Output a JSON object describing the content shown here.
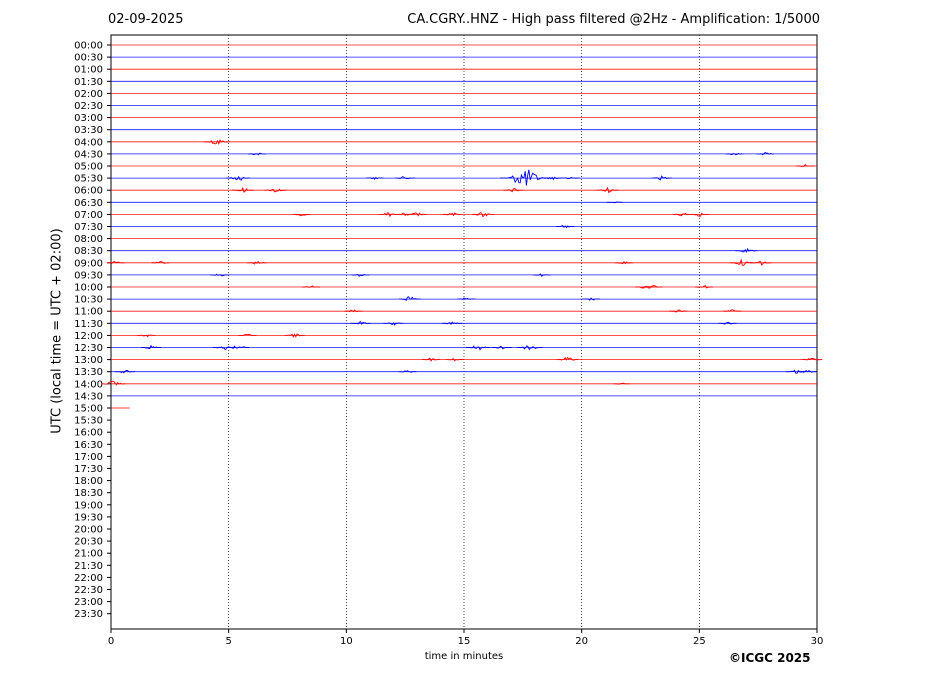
{
  "header": {
    "date": "02-09-2025",
    "title": "CA.CGRY..HNZ - High pass filtered @2Hz - Amplification: 1/5000"
  },
  "footer": {
    "copyright": "©ICGC 2025"
  },
  "colors": {
    "trace_a": "#ff0000",
    "trace_b": "#0000ff",
    "grid": "#000000"
  },
  "chart_data": {
    "type": "line",
    "title": "CA.CGRY..HNZ - High pass filtered @2Hz - Amplification: 1/5000",
    "xlabel": "time in minutes",
    "ylabel": "UTC (local time = UTC + 02:00)",
    "xlim": [
      0,
      30
    ],
    "x_ticks": [
      0,
      5,
      10,
      15,
      20,
      25,
      30
    ],
    "grid": "vertical dotted lines at 5, 10, 15, 20, 25 minutes",
    "y_ticks": [
      "00:00",
      "00:30",
      "01:00",
      "01:30",
      "02:00",
      "02:30",
      "03:00",
      "03:30",
      "04:00",
      "04:30",
      "05:00",
      "05:30",
      "06:00",
      "06:30",
      "07:00",
      "07:30",
      "08:00",
      "08:30",
      "09:00",
      "09:30",
      "10:00",
      "10:30",
      "11:00",
      "11:30",
      "12:00",
      "12:30",
      "13:00",
      "13:30",
      "14:00",
      "14:30",
      "15:00",
      "15:30",
      "16:00",
      "16:30",
      "17:00",
      "17:30",
      "18:00",
      "18:30",
      "19:00",
      "19:30",
      "20:00",
      "20:30",
      "21:00",
      "21:30",
      "22:00",
      "22:30",
      "23:00",
      "23:30"
    ],
    "recorded_until_minute_of_last_row": 0.8,
    "events": [
      {
        "row": "04:00",
        "minute": 4.5,
        "amp": 0.7
      },
      {
        "row": "04:30",
        "minute": 6.2,
        "amp": 0.3
      },
      {
        "row": "04:30",
        "minute": 26.5,
        "amp": 0.3
      },
      {
        "row": "04:30",
        "minute": 27.8,
        "amp": 0.3
      },
      {
        "row": "05:00",
        "minute": 29.5,
        "amp": 0.3
      },
      {
        "row": "05:30",
        "minute": 5.4,
        "amp": 0.6
      },
      {
        "row": "05:30",
        "minute": 11.2,
        "amp": 0.3
      },
      {
        "row": "05:30",
        "minute": 12.5,
        "amp": 0.4
      },
      {
        "row": "05:30",
        "minute": 17.6,
        "amp": 1.9
      },
      {
        "row": "05:30",
        "minute": 18.8,
        "amp": 0.4
      },
      {
        "row": "05:30",
        "minute": 19.5,
        "amp": 0.4
      },
      {
        "row": "05:30",
        "minute": 23.4,
        "amp": 0.4
      },
      {
        "row": "06:00",
        "minute": 5.6,
        "amp": 0.5
      },
      {
        "row": "06:00",
        "minute": 7.0,
        "amp": 0.5
      },
      {
        "row": "06:00",
        "minute": 17.1,
        "amp": 0.4
      },
      {
        "row": "06:00",
        "minute": 21.1,
        "amp": 0.5
      },
      {
        "row": "06:30",
        "minute": 21.4,
        "amp": 0.2
      },
      {
        "row": "07:00",
        "minute": 8.1,
        "amp": 0.3
      },
      {
        "row": "07:00",
        "minute": 11.8,
        "amp": 0.4
      },
      {
        "row": "07:00",
        "minute": 12.5,
        "amp": 0.3
      },
      {
        "row": "07:00",
        "minute": 13.0,
        "amp": 0.4
      },
      {
        "row": "07:00",
        "minute": 14.5,
        "amp": 0.4
      },
      {
        "row": "07:00",
        "minute": 15.8,
        "amp": 0.5
      },
      {
        "row": "07:00",
        "minute": 24.3,
        "amp": 0.4
      },
      {
        "row": "07:00",
        "minute": 25.0,
        "amp": 0.4
      },
      {
        "row": "07:30",
        "minute": 19.3,
        "amp": 0.3
      },
      {
        "row": "08:30",
        "minute": 27.0,
        "amp": 0.5
      },
      {
        "row": "09:00",
        "minute": 0.2,
        "amp": 0.3
      },
      {
        "row": "09:00",
        "minute": 2.1,
        "amp": 0.3
      },
      {
        "row": "09:00",
        "minute": 6.2,
        "amp": 0.4
      },
      {
        "row": "09:00",
        "minute": 21.8,
        "amp": 0.3
      },
      {
        "row": "09:00",
        "minute": 26.8,
        "amp": 0.6
      },
      {
        "row": "09:00",
        "minute": 27.6,
        "amp": 0.5
      },
      {
        "row": "09:30",
        "minute": 4.6,
        "amp": 0.3
      },
      {
        "row": "09:30",
        "minute": 10.6,
        "amp": 0.3
      },
      {
        "row": "09:30",
        "minute": 18.3,
        "amp": 0.3
      },
      {
        "row": "10:00",
        "minute": 8.5,
        "amp": 0.3
      },
      {
        "row": "10:00",
        "minute": 22.7,
        "amp": 0.4
      },
      {
        "row": "10:00",
        "minute": 23.0,
        "amp": 0.4
      },
      {
        "row": "10:00",
        "minute": 25.2,
        "amp": 0.3
      },
      {
        "row": "10:30",
        "minute": 12.7,
        "amp": 0.5
      },
      {
        "row": "10:30",
        "minute": 15.1,
        "amp": 0.3
      },
      {
        "row": "10:30",
        "minute": 20.4,
        "amp": 0.3
      },
      {
        "row": "11:00",
        "minute": 10.3,
        "amp": 0.3
      },
      {
        "row": "11:00",
        "minute": 24.1,
        "amp": 0.3
      },
      {
        "row": "11:00",
        "minute": 26.4,
        "amp": 0.3
      },
      {
        "row": "11:30",
        "minute": 10.6,
        "amp": 0.4
      },
      {
        "row": "11:30",
        "minute": 12.0,
        "amp": 0.4
      },
      {
        "row": "11:30",
        "minute": 14.5,
        "amp": 0.4
      },
      {
        "row": "11:30",
        "minute": 26.2,
        "amp": 0.3
      },
      {
        "row": "12:00",
        "minute": 1.5,
        "amp": 0.3
      },
      {
        "row": "12:00",
        "minute": 5.8,
        "amp": 0.3
      },
      {
        "row": "12:00",
        "minute": 7.8,
        "amp": 0.4
      },
      {
        "row": "12:30",
        "minute": 1.7,
        "amp": 0.4
      },
      {
        "row": "12:30",
        "minute": 4.8,
        "amp": 0.5
      },
      {
        "row": "12:30",
        "minute": 5.4,
        "amp": 0.5
      },
      {
        "row": "12:30",
        "minute": 15.6,
        "amp": 0.6
      },
      {
        "row": "12:30",
        "minute": 16.6,
        "amp": 0.4
      },
      {
        "row": "12:30",
        "minute": 17.8,
        "amp": 0.7
      },
      {
        "row": "13:00",
        "minute": 13.6,
        "amp": 0.3
      },
      {
        "row": "13:00",
        "minute": 14.6,
        "amp": 0.3
      },
      {
        "row": "13:00",
        "minute": 19.4,
        "amp": 0.5
      },
      {
        "row": "13:00",
        "minute": 29.8,
        "amp": 0.4
      },
      {
        "row": "13:30",
        "minute": 0.6,
        "amp": 0.4
      },
      {
        "row": "13:30",
        "minute": 12.6,
        "amp": 0.3
      },
      {
        "row": "13:30",
        "minute": 29.1,
        "amp": 0.4
      },
      {
        "row": "13:30",
        "minute": 29.6,
        "amp": 0.3
      },
      {
        "row": "14:00",
        "minute": 0.1,
        "amp": 0.6
      },
      {
        "row": "14:00",
        "minute": 21.7,
        "amp": 0.2
      }
    ]
  }
}
